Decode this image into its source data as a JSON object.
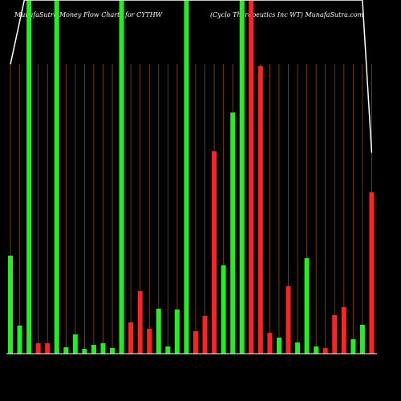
{
  "chart_data": {
    "type": "bar",
    "title": "MunafaSutra Money Flow Charts for CYTHW",
    "subtitle": "(Cyclo Therapeutics Inc WT) MunafaSutra.com",
    "ylim": [
      0,
      440
    ],
    "grid": "vertical",
    "colors": {
      "up": "#22ee22",
      "down": "#ff2222",
      "grid": "#8a4a00",
      "line": "#ffffff",
      "background": "#000000"
    },
    "values": [
      122,
      35,
      440,
      13,
      13,
      440,
      8,
      24,
      6,
      11,
      13,
      7,
      440,
      39,
      78,
      31,
      56,
      9,
      55,
      440,
      28,
      47,
      252,
      110,
      300,
      440,
      440,
      358,
      26,
      20,
      84,
      14,
      119,
      9,
      7,
      48,
      58,
      18,
      36,
      201
    ],
    "directions": [
      "up",
      "up",
      "up",
      "down",
      "down",
      "up",
      "up",
      "up",
      "up",
      "up",
      "up",
      "up",
      "up",
      "down",
      "down",
      "down",
      "up",
      "up",
      "up",
      "up",
      "down",
      "down",
      "down",
      "up",
      "up",
      "up",
      "down",
      "down",
      "down",
      "up",
      "down",
      "up",
      "up",
      "up",
      "down",
      "down",
      "down",
      "up",
      "up",
      "down"
    ],
    "price_line": [
      {
        "index": 0,
        "value": 360
      },
      {
        "index": 1.5,
        "value": 440
      },
      {
        "index": 38,
        "value": 440
      },
      {
        "index": 39,
        "value": 250
      }
    ]
  }
}
